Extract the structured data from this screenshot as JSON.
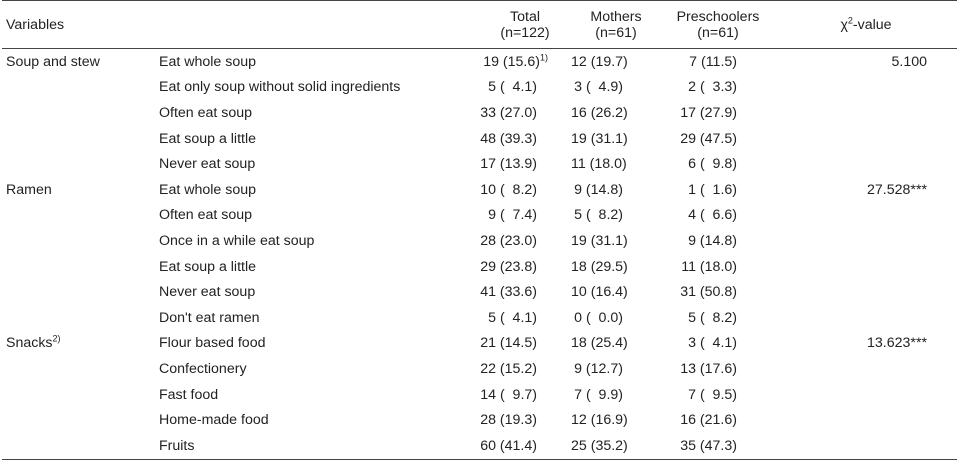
{
  "header": {
    "variables": "Variables",
    "total": "Total",
    "total_n": "(n=122)",
    "mothers": "Mothers",
    "mothers_n": "(n=61)",
    "preschoolers": "Preschoolers",
    "preschoolers_n": "(n=61)",
    "chi_symbol": "χ",
    "chi_sup": "2",
    "chi_suffix": "-value"
  },
  "footnote_marks": {
    "first_total": "1)",
    "snacks": "2)"
  },
  "groups": [
    {
      "variable": "Soup and stew",
      "variable_sup": "",
      "chi": "5.100",
      "rows": [
        {
          "item": "Eat whole soup",
          "total": "19 (15.6)",
          "mothers": "12 (19.7)",
          "preschoolers": "7 (11.5)"
        },
        {
          "item": "Eat only soup without solid ingredients",
          "total": "5 (  4.1)",
          "mothers": "3 (  4.9)",
          "preschoolers": "2 (  3.3)"
        },
        {
          "item": "Often eat soup",
          "total": "33 (27.0)",
          "mothers": "16 (26.2)",
          "preschoolers": "17 (27.9)"
        },
        {
          "item": "Eat soup a little",
          "total": "48 (39.3)",
          "mothers": "19 (31.1)",
          "preschoolers": "29 (47.5)"
        },
        {
          "item": "Never eat soup",
          "total": "17 (13.9)",
          "mothers": "11 (18.0)",
          "preschoolers": "6 (  9.8)"
        }
      ]
    },
    {
      "variable": "Ramen",
      "variable_sup": "",
      "chi": "27.528***",
      "rows": [
        {
          "item": "Eat whole soup",
          "total": "10 (  8.2)",
          "mothers": "9 (14.8)",
          "preschoolers": "1 (  1.6)"
        },
        {
          "item": "Often eat soup",
          "total": "9 (  7.4)",
          "mothers": "5 (  8.2)",
          "preschoolers": "4 (  6.6)"
        },
        {
          "item": "Once in a while eat soup",
          "total": "28 (23.0)",
          "mothers": "19 (31.1)",
          "preschoolers": "9 (14.8)"
        },
        {
          "item": "Eat soup a little",
          "total": "29 (23.8)",
          "mothers": "18 (29.5)",
          "preschoolers": "11 (18.0)"
        },
        {
          "item": "Never eat soup",
          "total": "41 (33.6)",
          "mothers": "10 (16.4)",
          "preschoolers": "31 (50.8)"
        },
        {
          "item": "Don't eat ramen",
          "total": "5 (  4.1)",
          "mothers": "0 (  0.0)",
          "preschoolers": "5 (  8.2)"
        }
      ]
    },
    {
      "variable": "Snacks",
      "variable_sup": "2)",
      "chi": "13.623***",
      "rows": [
        {
          "item": "Flour based food",
          "total": "21 (14.5)",
          "mothers": "18 (25.4)",
          "preschoolers": "3 (  4.1)"
        },
        {
          "item": "Confectionery",
          "total": "22 (15.2)",
          "mothers": "9 (12.7)",
          "preschoolers": "13 (17.6)"
        },
        {
          "item": "Fast food",
          "total": "14 (  9.7)",
          "mothers": "7 (  9.9)",
          "preschoolers": "7 (  9.5)"
        },
        {
          "item": "Home-made food",
          "total": "28 (19.3)",
          "mothers": "12 (16.9)",
          "preschoolers": "16 (21.6)"
        },
        {
          "item": "Fruits",
          "total": "60 (41.4)",
          "mothers": "25 (35.2)",
          "preschoolers": "35 (47.3)"
        }
      ]
    }
  ]
}
